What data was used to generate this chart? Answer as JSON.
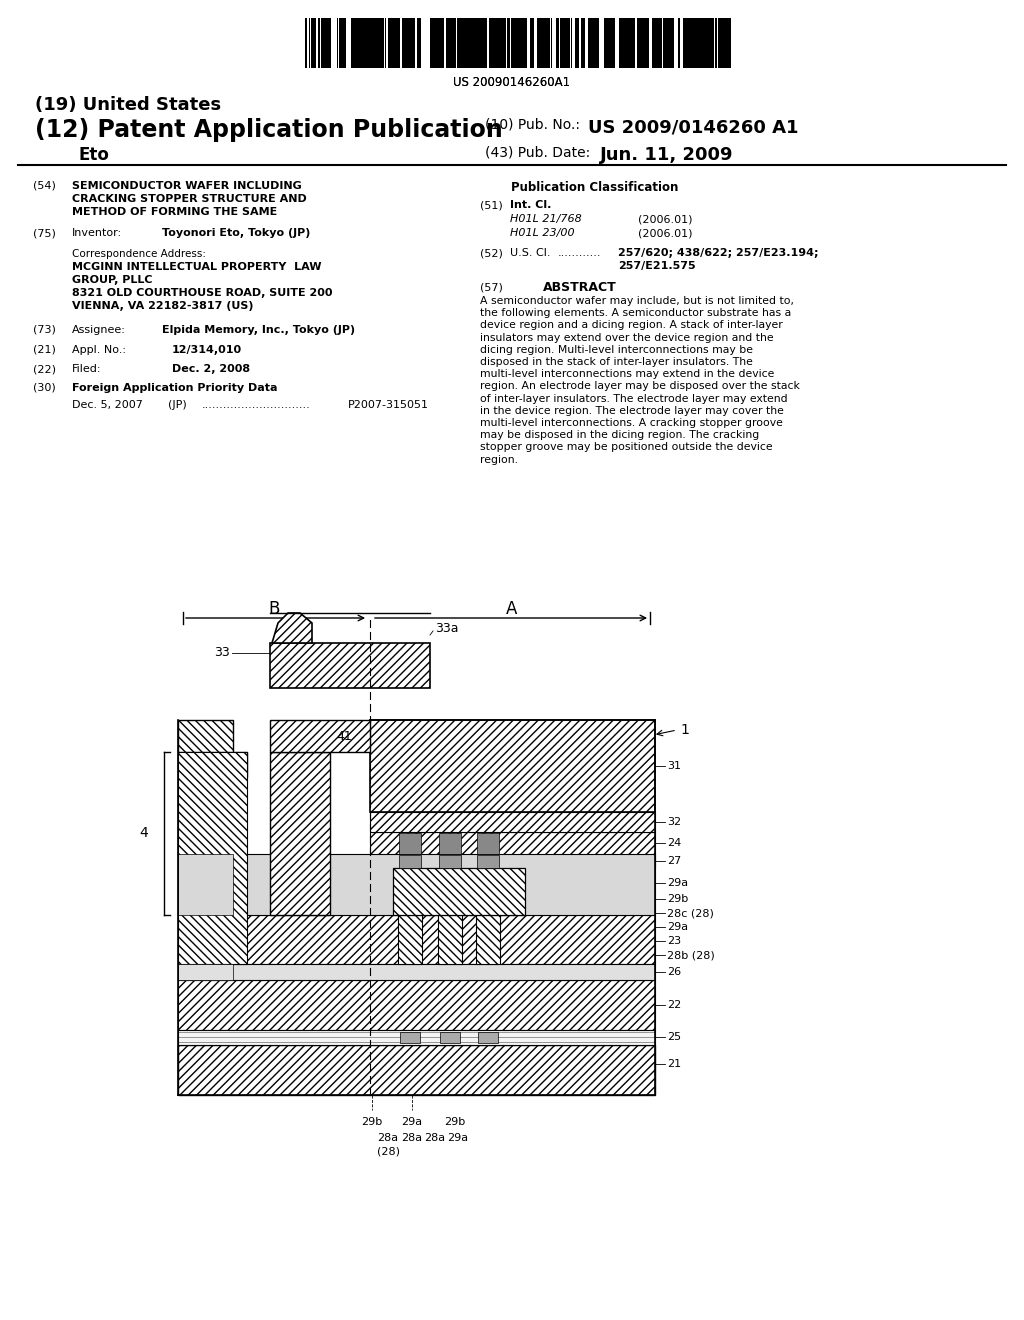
{
  "bg_color": "#ffffff",
  "barcode_text": "US 20090146260A1",
  "header_country": "(19) United States",
  "header_type": "(12) Patent Application Publication",
  "header_inventor": "Eto",
  "pub_no_label": "(10) Pub. No.:",
  "pub_no_value": "US 2009/0146260 A1",
  "pub_date_label": "(43) Pub. Date:",
  "pub_date_value": "Jun. 11, 2009",
  "s54_num": "(54)",
  "s54_line1": "SEMICONDUCTOR WAFER INCLUDING",
  "s54_line2": "CRACKING STOPPER STRUCTURE AND",
  "s54_line3": "METHOD OF FORMING THE SAME",
  "s75_num": "(75)",
  "s75_label": "Inventor:",
  "s75_value": "Toyonori Eto, Tokyo (JP)",
  "corr_label": "Correspondence Address:",
  "corr_line1": "MCGINN INTELLECTUAL PROPERTY  LAW",
  "corr_line2": "GROUP, PLLC",
  "corr_line3": "8321 OLD COURTHOUSE ROAD, SUITE 200",
  "corr_line4": "VIENNA, VA 22182-3817 (US)",
  "s73_num": "(73)",
  "s73_label": "Assignee:",
  "s73_value": "Elpida Memory, Inc., Tokyo (JP)",
  "s21_num": "(21)",
  "s21_label": "Appl. No.:",
  "s21_value": "12/314,010",
  "s22_num": "(22)",
  "s22_label": "Filed:",
  "s22_value": "Dec. 2, 2008",
  "s30_num": "(30)",
  "s30_label": "Foreign Application Priority Data",
  "foreign_date": "Dec. 5, 2007",
  "foreign_country": "(JP)",
  "foreign_app": "P2007-315051",
  "pub_class_label": "Publication Classification",
  "s51_num": "(51)",
  "s51_label": "Int. Cl.",
  "intcl1": "H01L 21/768",
  "intcl1_date": "(2006.01)",
  "intcl2": "H01L 23/00",
  "intcl2_date": "(2006.01)",
  "s52_num": "(52)",
  "s52_label": "U.S. Cl.",
  "s52_value1": "257/620; 438/622; 257/E23.194;",
  "s52_value2": "257/E21.575",
  "s57_num": "(57)",
  "s57_label": "ABSTRACT",
  "abstract": "A semiconductor wafer may include, but is not limited to, the following elements. A semiconductor substrate has a device region and a dicing region. A stack of inter-layer insulators may extend over the device region and the dicing region. Multi-level interconnections may be disposed in the stack of inter-layer insulators. The multi-level interconnections may extend in the device region. An electrode layer may be disposed over the stack of inter-layer insulators. The electrode layer may extend in the device region. The electrode layer may cover the multi-level interconnections. A cracking stopper groove may be disposed in the dicing region. The cracking stopper groove may be positioned outside the device region."
}
